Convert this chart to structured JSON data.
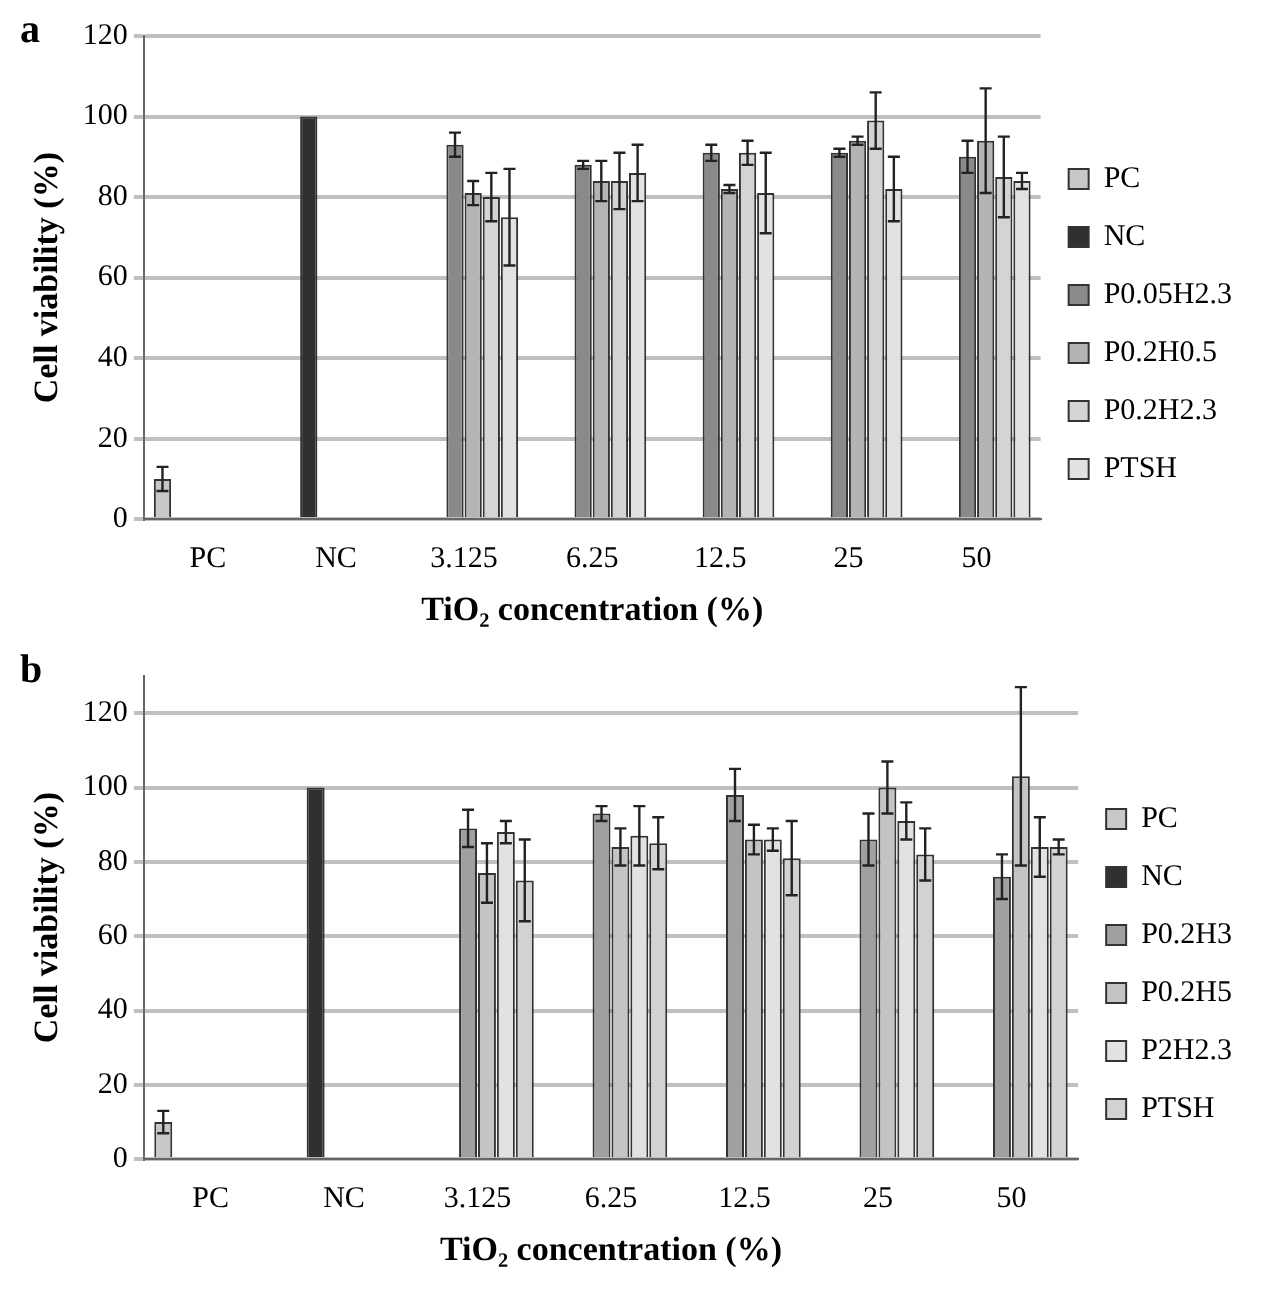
{
  "chart_data": [
    {
      "type": "bar",
      "title": "a",
      "xlabel": "TiO₂ concentration (%)",
      "ylabel": "Cell viability (%)",
      "categories": [
        "PC",
        "NC",
        "3.125",
        "6.25",
        "12.5",
        "25",
        "50"
      ],
      "ylim": [
        0,
        120
      ],
      "yticks": [
        0,
        20,
        40,
        60,
        80,
        100,
        120
      ],
      "grid": "y",
      "legend": "right",
      "series": [
        {
          "name": "PC",
          "color": "#c8c8c8",
          "values": [
            10,
            null,
            null,
            null,
            null,
            null,
            null
          ],
          "errors": [
            3,
            null,
            null,
            null,
            null,
            null,
            null
          ]
        },
        {
          "name": "NC",
          "color": "#303030",
          "values": [
            null,
            100,
            null,
            null,
            null,
            null,
            null
          ]
        },
        {
          "name": "P0.05H2.3",
          "color": "#8a8a8a",
          "values": [
            null,
            null,
            93,
            88,
            91,
            91,
            90
          ],
          "errors": [
            null,
            null,
            3,
            1,
            2,
            1,
            4
          ]
        },
        {
          "name": "P0.2H0.5",
          "color": "#b4b4b4",
          "values": [
            null,
            null,
            81,
            84,
            82,
            94,
            94
          ],
          "errors": [
            null,
            null,
            3,
            5,
            1,
            1,
            13
          ]
        },
        {
          "name": "P0.2H2.3",
          "color": "#d4d4d4",
          "values": [
            null,
            null,
            80,
            84,
            91,
            99,
            85
          ],
          "errors": [
            null,
            null,
            6,
            7,
            3,
            7,
            10
          ]
        },
        {
          "name": "PTSH",
          "color": "#e2e2e2",
          "values": [
            null,
            null,
            75,
            86,
            81,
            82,
            84
          ],
          "errors": [
            null,
            null,
            12,
            7,
            10,
            8,
            2
          ]
        }
      ]
    },
    {
      "type": "bar",
      "title": "b",
      "xlabel": "TiO₂ concentration (%)",
      "ylabel": "Cell viability (%)",
      "categories": [
        "PC",
        "NC",
        "3.125",
        "6.25",
        "12.5",
        "25",
        "50"
      ],
      "ylim": [
        0,
        130
      ],
      "yticks": [
        0,
        20,
        40,
        60,
        80,
        100,
        120
      ],
      "grid": "y",
      "legend": "right",
      "series": [
        {
          "name": "PC",
          "color": "#c8c8c8",
          "values": [
            10,
            null,
            null,
            null,
            null,
            null,
            null
          ],
          "errors": [
            3,
            null,
            null,
            null,
            null,
            null,
            null
          ]
        },
        {
          "name": "NC",
          "color": "#303030",
          "values": [
            null,
            100,
            null,
            null,
            null,
            null,
            null
          ]
        },
        {
          "name": "P0.2H3",
          "color": "#a0a0a0",
          "values": [
            null,
            null,
            89,
            93,
            98,
            86,
            76
          ],
          "errors": [
            null,
            null,
            5,
            2,
            7,
            7,
            6
          ]
        },
        {
          "name": "P0.2H5",
          "color": "#c4c4c4",
          "values": [
            null,
            null,
            77,
            84,
            86,
            100,
            103
          ],
          "errors": [
            null,
            null,
            8,
            5,
            4,
            7,
            24
          ]
        },
        {
          "name": "P2H2.3",
          "color": "#e2e2e2",
          "values": [
            null,
            null,
            88,
            87,
            86,
            91,
            84
          ],
          "errors": [
            null,
            null,
            3,
            8,
            3,
            5,
            8
          ]
        },
        {
          "name": "PTSH",
          "color": "#d2d2d2",
          "values": [
            null,
            null,
            75,
            85,
            81,
            82,
            84
          ],
          "errors": [
            null,
            null,
            11,
            7,
            10,
            7,
            2
          ]
        }
      ]
    }
  ]
}
